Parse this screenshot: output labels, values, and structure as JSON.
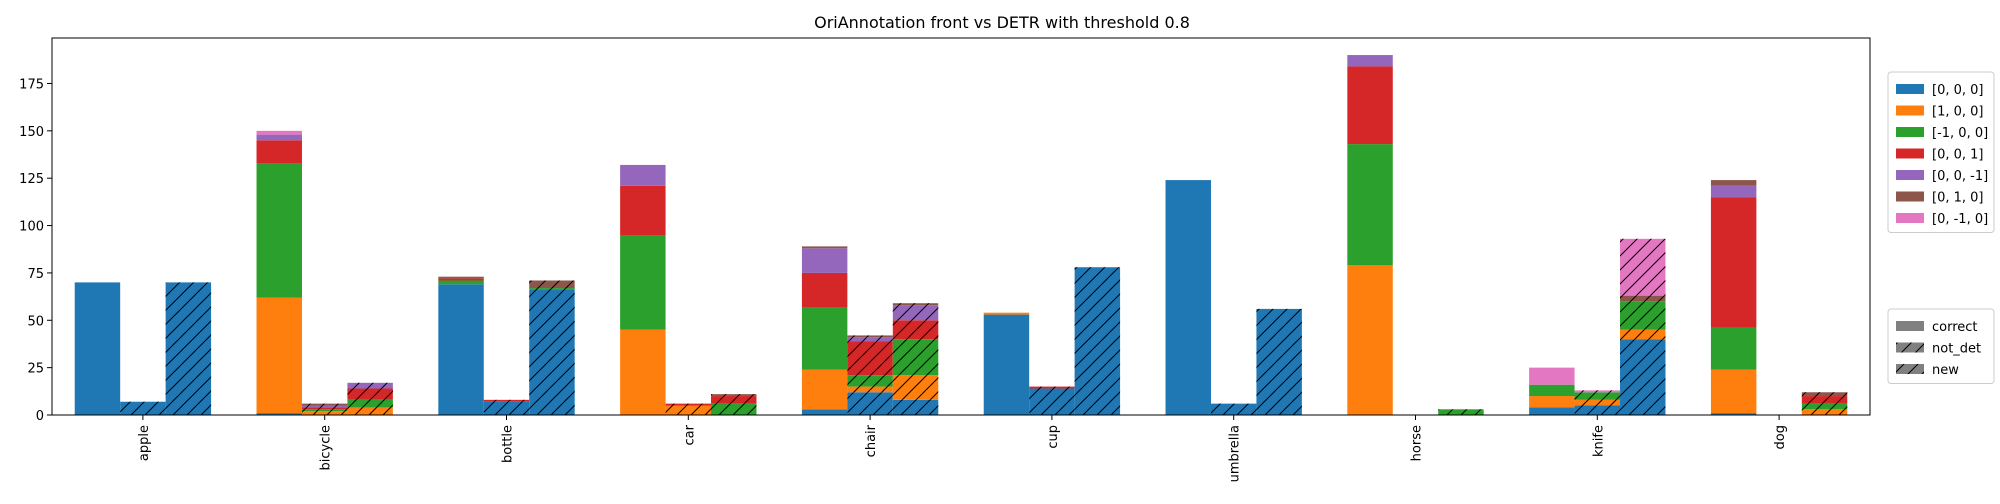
{
  "chart_data": {
    "type": "bar",
    "stacked": true,
    "title": "OriAnnotation front vs DETR with threshold 0.8",
    "xlabel": "",
    "ylabel": "",
    "categories": [
      "apple",
      "bicycle",
      "bottle",
      "car",
      "chair",
      "cup",
      "umbrella",
      "horse",
      "knife",
      "dog"
    ],
    "ylim": [
      0,
      199
    ],
    "yticks": [
      0,
      25,
      50,
      75,
      100,
      125,
      150,
      175
    ],
    "grid": false,
    "bar_groups": [
      {
        "name": "correct",
        "hatch": "none"
      },
      {
        "name": "not_det",
        "hatch": "forward"
      },
      {
        "name": "new",
        "hatch": "backward"
      }
    ],
    "series": [
      {
        "name": "[0, 0, 0]",
        "color": "#1f77b4",
        "correct": [
          70,
          1,
          69,
          0,
          3,
          53,
          124,
          0,
          4,
          1
        ],
        "not_det": [
          7,
          0,
          7,
          0,
          12,
          14,
          6,
          0,
          5,
          0
        ],
        "new": [
          70,
          0,
          66,
          0,
          8,
          78,
          56,
          0,
          40,
          0
        ]
      },
      {
        "name": "[1, 0, 0]",
        "color": "#ff7f0e",
        "correct": [
          0,
          61,
          0,
          45,
          21,
          1,
          0,
          79,
          6,
          23
        ],
        "not_det": [
          0,
          2,
          0,
          5,
          3,
          0,
          0,
          0,
          3,
          0
        ],
        "new": [
          0,
          4,
          0,
          0,
          13,
          0,
          0,
          0,
          5,
          3
        ]
      },
      {
        "name": "[-1, 0, 0]",
        "color": "#2ca02c",
        "correct": [
          0,
          71,
          2,
          50,
          33,
          0,
          0,
          64,
          6,
          22
        ],
        "not_det": [
          0,
          1,
          0,
          0,
          6,
          0,
          0,
          0,
          4,
          0
        ],
        "new": [
          0,
          4,
          1,
          6,
          19,
          0,
          0,
          3,
          15,
          3
        ]
      },
      {
        "name": "[0, 0, 1]",
        "color": "#d62728",
        "correct": [
          0,
          12,
          1,
          26,
          18,
          0,
          0,
          41,
          0,
          69
        ],
        "not_det": [
          0,
          1,
          1,
          1,
          18,
          1,
          0,
          0,
          0,
          0
        ],
        "new": [
          0,
          6,
          0,
          4,
          10,
          0,
          0,
          0,
          0,
          4
        ]
      },
      {
        "name": "[0, 0, -1]",
        "color": "#9467bd",
        "correct": [
          0,
          3,
          0,
          11,
          13,
          0,
          0,
          6,
          0,
          6
        ],
        "not_det": [
          0,
          1,
          0,
          0,
          2,
          0,
          0,
          0,
          0,
          0
        ],
        "new": [
          0,
          3,
          0,
          0,
          8,
          0,
          0,
          0,
          0,
          0
        ]
      },
      {
        "name": "[0, 1, 0]",
        "color": "#8c564b",
        "correct": [
          0,
          0,
          1,
          0,
          1,
          0,
          0,
          0,
          0,
          3
        ],
        "not_det": [
          0,
          1,
          0,
          0,
          1,
          0,
          0,
          0,
          0,
          0
        ],
        "new": [
          0,
          0,
          4,
          1,
          1,
          0,
          0,
          0,
          3,
          2
        ]
      },
      {
        "name": "[0, -1, 0]",
        "color": "#e377c2",
        "correct": [
          0,
          2,
          0,
          0,
          0,
          0,
          0,
          0,
          9,
          0
        ],
        "not_det": [
          0,
          0,
          0,
          0,
          0,
          0,
          0,
          0,
          1,
          0
        ],
        "new": [
          0,
          0,
          0,
          0,
          0,
          0,
          0,
          0,
          30,
          0
        ]
      }
    ],
    "legends": [
      {
        "placement": "right-upper",
        "entries": [
          "[0, 0, 0]",
          "[1, 0, 0]",
          "[-1, 0, 0]",
          "[0, 0, 1]",
          "[0, 0, -1]",
          "[0, 1, 0]",
          "[0, -1, 0]"
        ]
      },
      {
        "placement": "right-lower",
        "entries": [
          "correct",
          "not_det",
          "new"
        ]
      }
    ]
  }
}
